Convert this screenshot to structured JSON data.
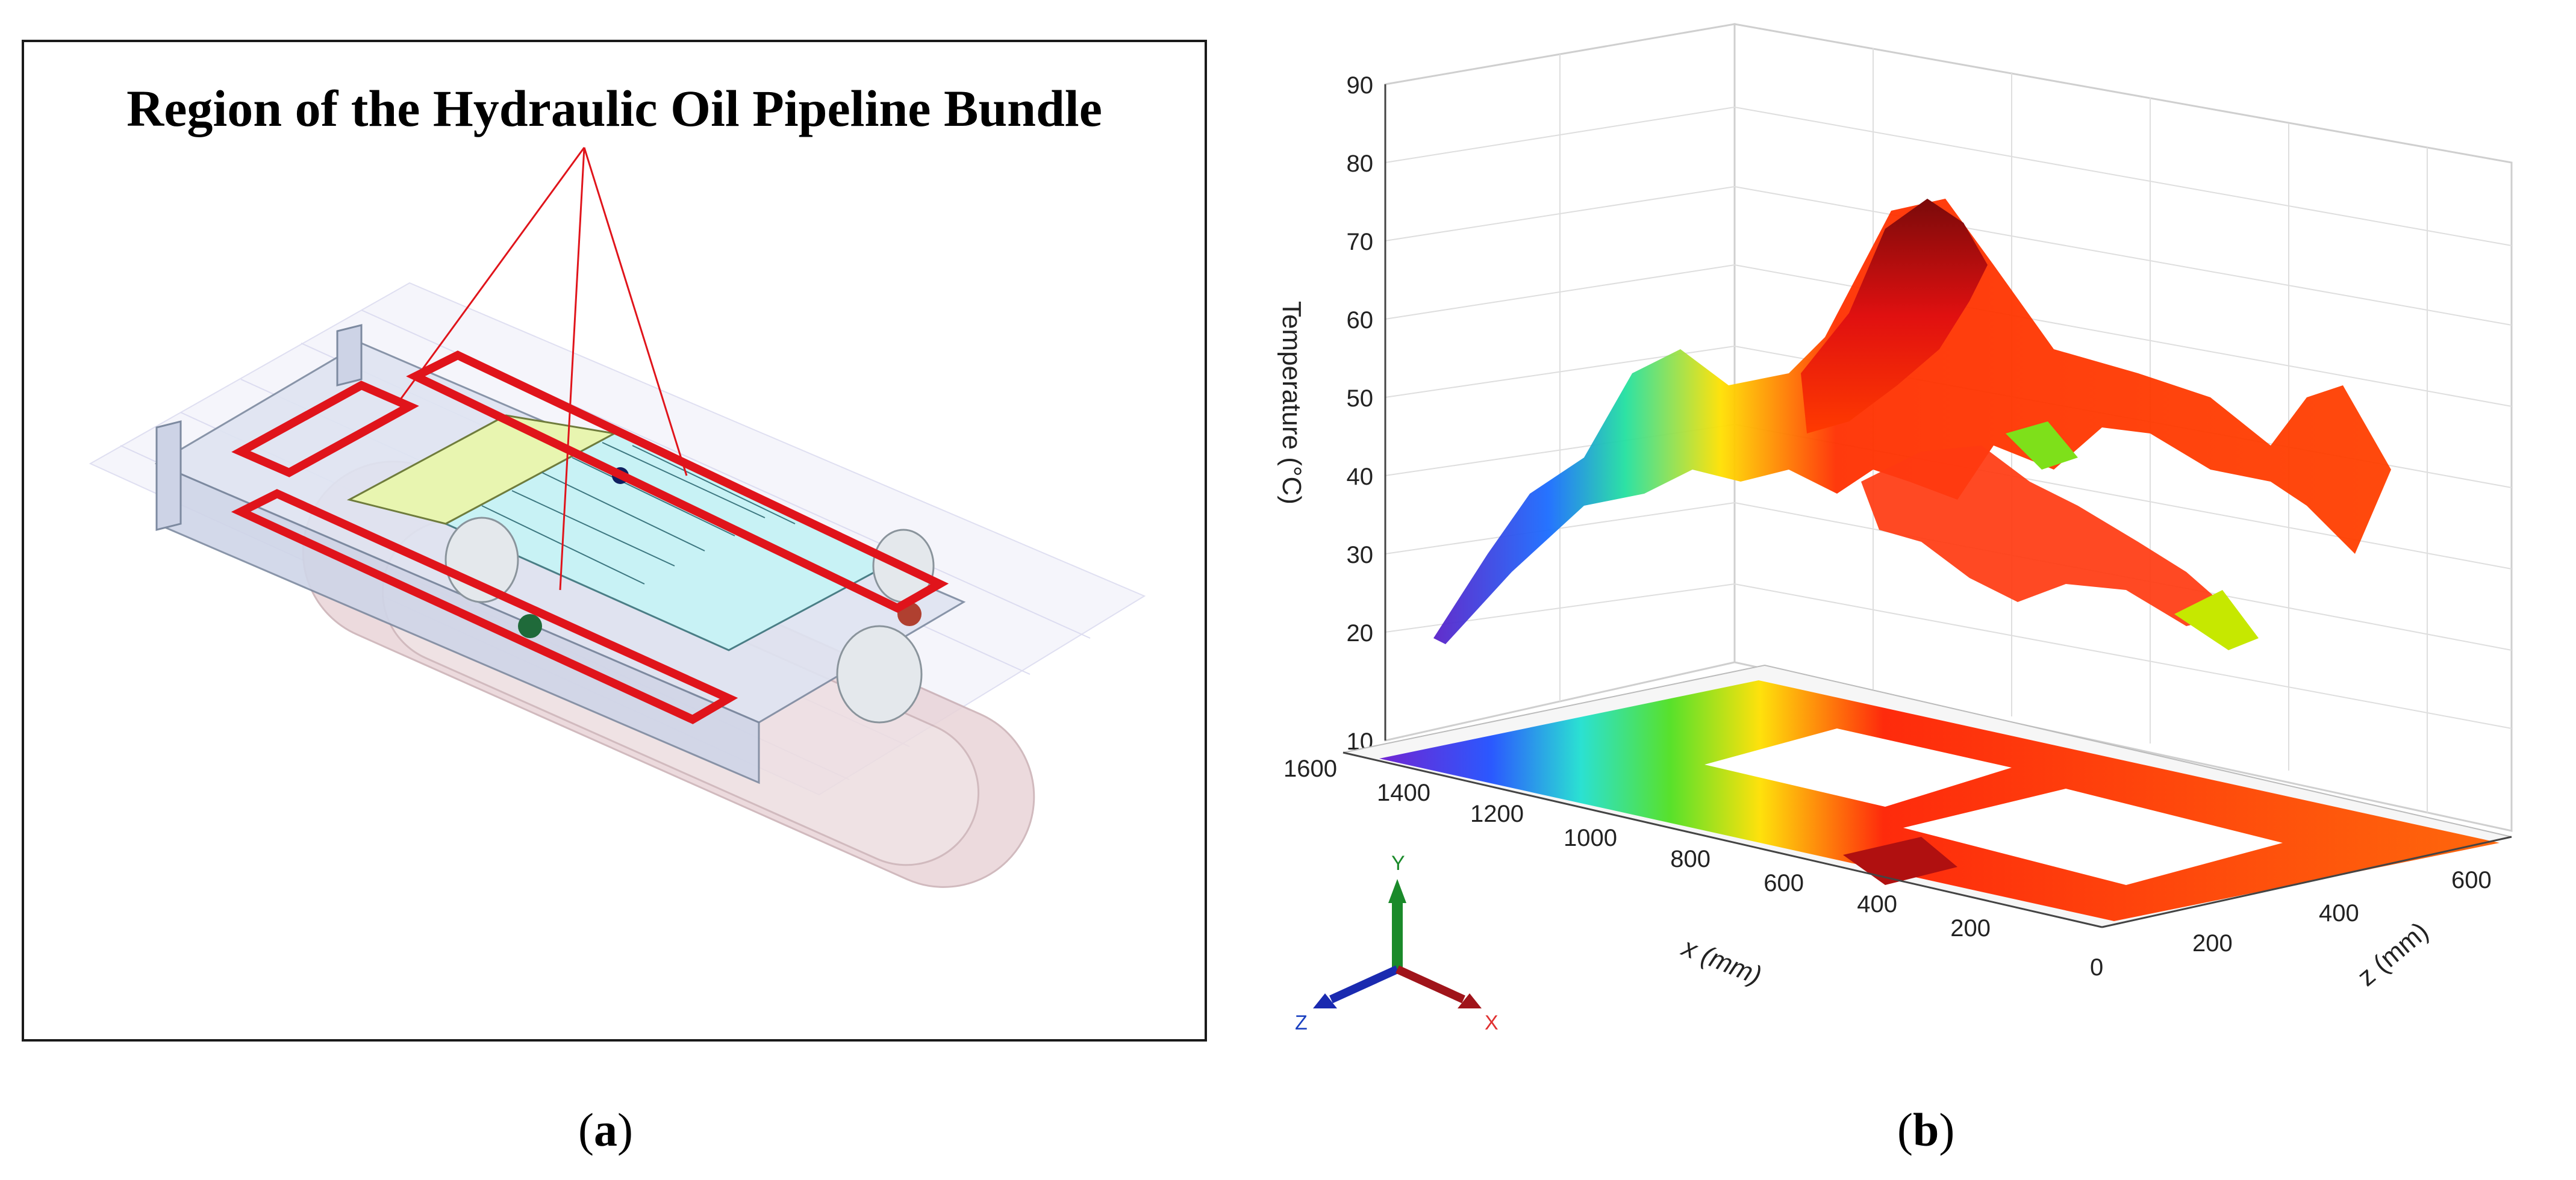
{
  "figure": {
    "panel_a": {
      "title": "Region of the Hydraulic Oil Pipeline Bundle",
      "caption_letter": "a"
    },
    "panel_b": {
      "caption_letter": "b",
      "axes": {
        "y_label": "Temperature (°C)",
        "x_label": "x (mm)",
        "z_label": "z (mm)",
        "y_ticks": [
          "10",
          "20",
          "30",
          "40",
          "50",
          "60",
          "70",
          "80",
          "90"
        ],
        "x_ticks": [
          "200",
          "400",
          "600",
          "800",
          "1000",
          "1200",
          "1400",
          "1600"
        ],
        "z_ticks": [
          "0",
          "200",
          "400",
          "600"
        ]
      },
      "triad": {
        "y": "Y",
        "z": "Z",
        "x": "X"
      }
    }
  },
  "colors": {
    "highlight_red": "#e0141b",
    "hot": "#7a0a0a",
    "warm": "#ff1a00",
    "mid": "#ffd000",
    "cool": "#44e000",
    "cold": "#6020c8"
  }
}
